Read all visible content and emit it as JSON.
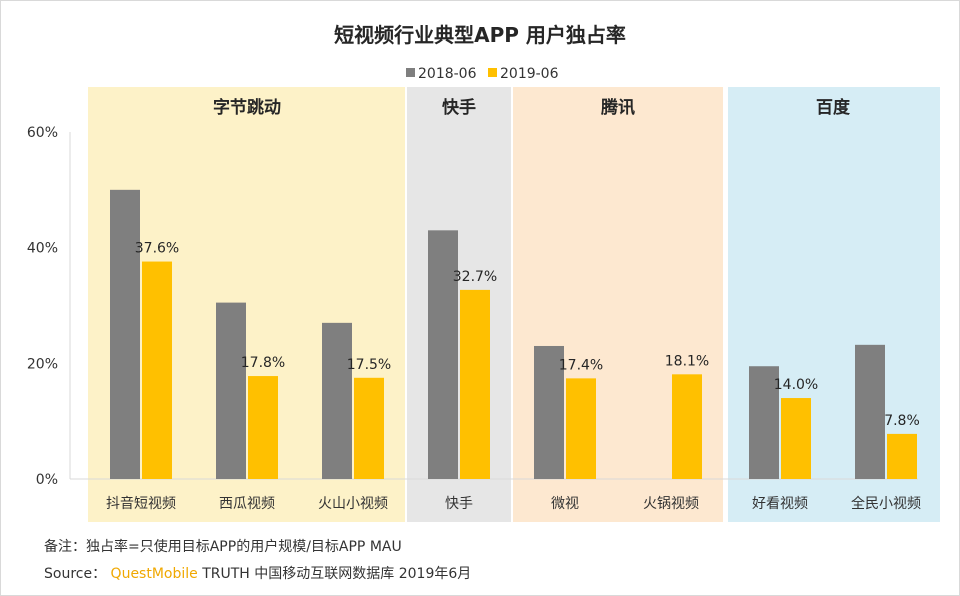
{
  "title": "短视频行业典型APP 用户独占率",
  "legend": [
    {
      "label": "2018-06",
      "color": "#7f7f7f"
    },
    {
      "label": "2019-06",
      "color": "#ffc000"
    }
  ],
  "groups": [
    {
      "label": "字节跳动",
      "color": "#fdf2c8",
      "start": 0,
      "end": 2
    },
    {
      "label": "快手",
      "color": "#e6e6e6",
      "start": 3,
      "end": 3
    },
    {
      "label": "腾讯",
      "color": "#fde8d0",
      "start": 4,
      "end": 5
    },
    {
      "label": "百度",
      "color": "#d6edf5",
      "start": 6,
      "end": 7
    }
  ],
  "chart_data": {
    "type": "bar",
    "title": "短视频行业典型APP 用户独占率",
    "categories": [
      "抖音短视频",
      "西瓜视频",
      "火山小视频",
      "快手",
      "微视",
      "火锅视频",
      "好看视频",
      "全民小视频"
    ],
    "series": [
      {
        "name": "2018-06",
        "values": [
          50.0,
          30.5,
          27.0,
          43.0,
          23.0,
          null,
          19.5,
          23.2
        ],
        "labels": [
          "",
          "",
          "",
          "",
          "",
          "",
          "",
          ""
        ]
      },
      {
        "name": "2019-06",
        "values": [
          37.6,
          17.8,
          17.5,
          32.7,
          17.4,
          18.1,
          14.0,
          7.8
        ],
        "labels": [
          "37.6%",
          "17.8%",
          "17.5%",
          "32.7%",
          "17.4%",
          "18.1%",
          "14.0%",
          "7.8%"
        ]
      }
    ],
    "yticks": [
      "0%",
      "20%",
      "40%",
      "60%"
    ],
    "ylim": [
      0,
      60
    ],
    "xlabel": "",
    "ylabel": "",
    "grid": false,
    "legend_position": "top"
  },
  "footnotes": {
    "note": "备注：独占率=只使用目标APP的用户规模/目标APP MAU",
    "source_prefix": "Source：",
    "source_brand": "QuestMobile",
    "source_rest": " TRUTH 中国移动互联网数据库 2019年6月"
  }
}
